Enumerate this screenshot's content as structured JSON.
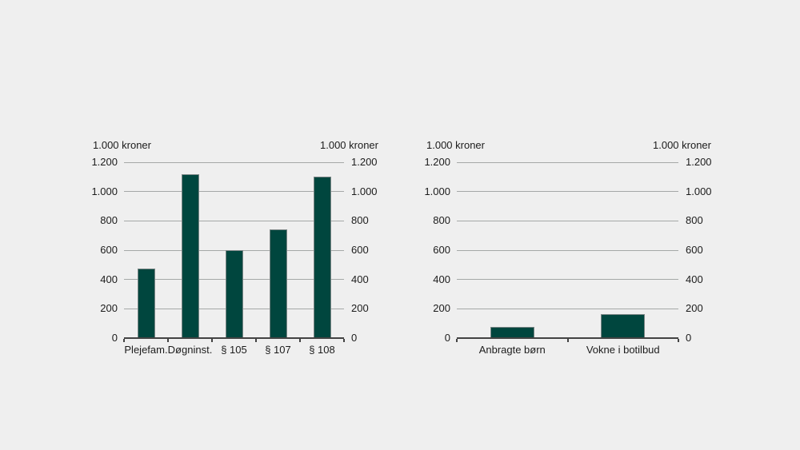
{
  "colors": {
    "background": "#efefef",
    "bar_fill": "#00463e",
    "bar_outline": "#7b8585",
    "gridline": "#a5a8a7",
    "axis_line": "#434343",
    "text": "#1c1c1c"
  },
  "chart_data": [
    {
      "type": "bar",
      "title": "",
      "ylabel_left": "1.000 kroner",
      "ylabel_right": "1.000 kroner",
      "categories": [
        "Plejefam.",
        "Døgninst.",
        "§ 105",
        "§ 107",
        "§ 108"
      ],
      "values": [
        475,
        1120,
        600,
        740,
        1100
      ],
      "ylim": [
        0,
        1200
      ],
      "y_ticks": [
        {
          "label": "1.200",
          "value": 1200
        },
        {
          "label": "1.000",
          "value": 1000
        },
        {
          "label": "800",
          "value": 800
        },
        {
          "label": "600",
          "value": 600
        },
        {
          "label": "400",
          "value": 400
        },
        {
          "label": "200",
          "value": 200
        },
        {
          "label": "0",
          "value": 0
        }
      ],
      "grid": true,
      "legend": false
    },
    {
      "type": "bar",
      "title": "",
      "ylabel_left": "1.000 kroner",
      "ylabel_right": "1.000 kroner",
      "categories": [
        "Anbragte børn",
        "Vokne i botilbud"
      ],
      "values": [
        75,
        165
      ],
      "ylim": [
        0,
        1200
      ],
      "y_ticks": [
        {
          "label": "1.200",
          "value": 1200
        },
        {
          "label": "1.000",
          "value": 1000
        },
        {
          "label": "800",
          "value": 800
        },
        {
          "label": "600",
          "value": 600
        },
        {
          "label": "400",
          "value": 400
        },
        {
          "label": "200",
          "value": 200
        },
        {
          "label": "0",
          "value": 0
        }
      ],
      "grid": true,
      "legend": false
    }
  ]
}
